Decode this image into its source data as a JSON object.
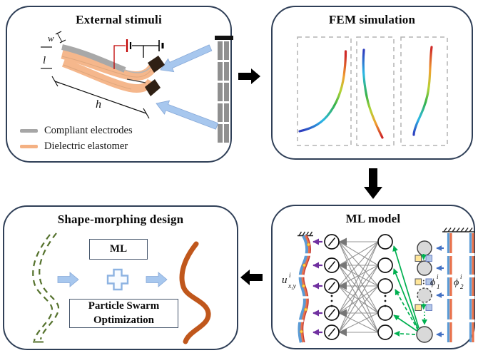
{
  "panels": {
    "external_stimuli": {
      "title": "External stimuli",
      "dims": {
        "w": "w",
        "l": "l",
        "h": "h"
      },
      "legend": [
        {
          "label": "Compliant electrodes",
          "color": "#a6a6a6"
        },
        {
          "label": "Dielectric elastomer",
          "color": "#f4b183"
        }
      ]
    },
    "fem_simulation": {
      "title": "FEM simulation"
    },
    "ml_model": {
      "title": "ML model",
      "output_label": {
        "base": "u",
        "sup": "i",
        "sub": "x,y"
      },
      "phase1_label": {
        "base": "ϕ",
        "sub": "1",
        "sup": "i"
      },
      "phase2_label": {
        "base": "ϕ",
        "sub": "2",
        "sup": "i"
      }
    },
    "shape_morphing": {
      "title": "Shape-morphing design",
      "ml_box": "ML",
      "pso_line1": "Particle Swarm",
      "pso_line2": "Optimization"
    }
  },
  "colors": {
    "panel_border": "#2f3f57",
    "electrode_gray": "#a6a6a6",
    "elastomer_orange": "#f4b183",
    "stimulus_arrow_blue": "#a7c7ee",
    "flow_arrow_black": "#000000",
    "wire_red": "#c00000",
    "target_shape_green": "#55722d",
    "result_shape_orange": "#c0571c",
    "nn_link_gray": "#8f8f8f",
    "output_arrow_purple": "#7030a0",
    "input_arrow_blue": "#4472c4",
    "context_arrow_green": "#00b050",
    "node_fill_gray": "#d9d9d9",
    "feature_square_yellow": "#ffe699",
    "feature_square_blue": "#b4c7e7",
    "phase_stripe_blue": "#5b9bd5",
    "phase_stripe_orange": "#ed7d31",
    "fem_colormap": [
      "#2e3fbf",
      "#2bb8e6",
      "#37b34a",
      "#b5d334",
      "#f0a030",
      "#cf2a27"
    ]
  }
}
